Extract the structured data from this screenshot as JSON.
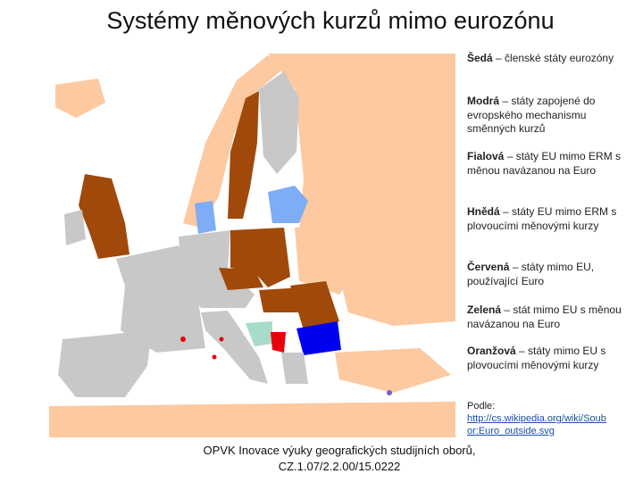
{
  "header": {
    "title": "Systémy měnových kurzů mimo eurozónu"
  },
  "legend": [
    {
      "term": "Šedá",
      "desc": "– členské státy eurozóny"
    },
    {
      "term": "Modrá",
      "desc": "– státy zapojené do evropského mechanismu směnných kurzů"
    },
    {
      "term": "Fialová",
      "desc": "– státy EU mimo ERM s měnou navázanou na Euro"
    },
    {
      "term": "Hnědá",
      "desc": "– státy EU mimo ERM s plovoucími měnovými kurzy"
    },
    {
      "term": "Červená",
      "desc": "– státy mimo EU, používající Euro"
    },
    {
      "term": "Zelená",
      "desc": "– stát mimo EU s měnou navázanou na Euro"
    },
    {
      "term": "Oranžová",
      "desc": "– státy mimo EU s plovoucími měnovými kurzy"
    }
  ],
  "source": {
    "label": "Podle:",
    "link": "http://cs.wikipedia.org/wiki/Soubor:Euro_outside.svg"
  },
  "footer": {
    "line1": "OPVK Inovace výuky geografických studijních oborů,",
    "line2": "CZ.1.07/2.2.00/15.0222"
  }
}
